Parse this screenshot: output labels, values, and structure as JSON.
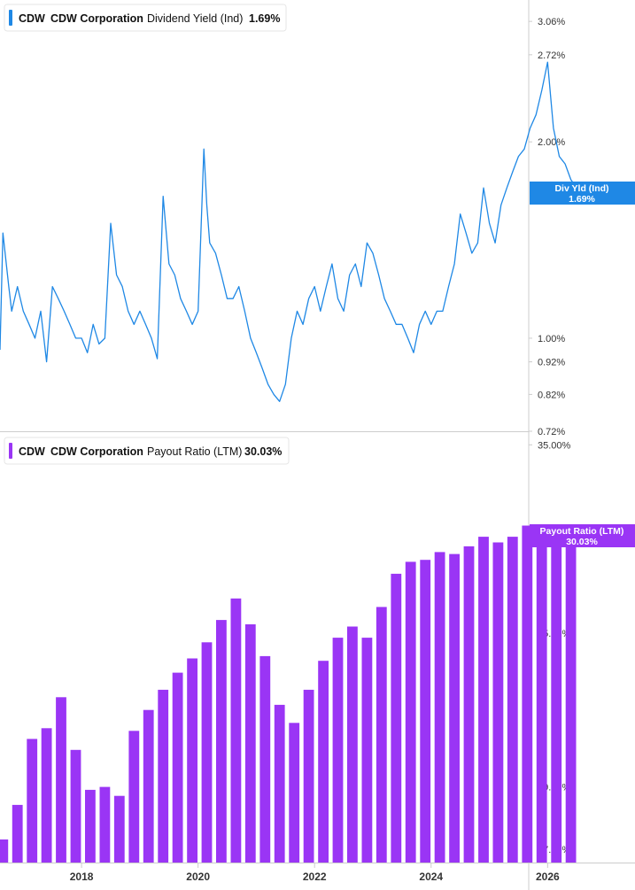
{
  "colors": {
    "yield": "#1f88e5",
    "payout": "#9a35f5",
    "axis_line": "#cccccc",
    "tick_text": "#333333"
  },
  "chart_data": [
    {
      "type": "line",
      "legend": {
        "ticker": "CDW",
        "company": "CDW Corporation",
        "metric": "Dividend Yield (Ind)",
        "value": "1.69%"
      },
      "badge": {
        "line1": "Div Yld (Ind)",
        "line2": "1.69%"
      },
      "y_scale": "log",
      "ylim": [
        0.72,
        3.3
      ],
      "y_ticks": [
        {
          "value": 3.06,
          "label": "3.06%"
        },
        {
          "value": 2.72,
          "label": "2.72%"
        },
        {
          "value": 2.0,
          "label": "2.00%"
        },
        {
          "value": 1.0,
          "label": "1.00%"
        },
        {
          "value": 0.92,
          "label": "0.92%"
        },
        {
          "value": 0.82,
          "label": "0.82%"
        },
        {
          "value": 0.72,
          "label": "0.72%"
        }
      ],
      "xlim": [
        2016.6,
        2027.5
      ],
      "series": [
        {
          "x": [
            2016.6,
            2016.65,
            2016.75,
            2016.8,
            2016.9,
            2017.0,
            2017.1,
            2017.2,
            2017.3,
            2017.4,
            2017.5,
            2017.6,
            2017.7,
            2017.8,
            2017.9,
            2018.0,
            2018.1,
            2018.2,
            2018.3,
            2018.4,
            2018.5,
            2018.6,
            2018.7,
            2018.8,
            2018.9,
            2019.0,
            2019.1,
            2019.2,
            2019.3,
            2019.4,
            2019.5,
            2019.6,
            2019.7,
            2019.8,
            2019.9,
            2020.0,
            2020.1,
            2020.15,
            2020.2,
            2020.3,
            2020.4,
            2020.5,
            2020.6,
            2020.7,
            2020.8,
            2020.9,
            2021.0,
            2021.1,
            2021.2,
            2021.3,
            2021.4,
            2021.5,
            2021.6,
            2021.7,
            2021.8,
            2021.9,
            2022.0,
            2022.1,
            2022.2,
            2022.3,
            2022.4,
            2022.5,
            2022.6,
            2022.7,
            2022.8,
            2022.9,
            2023.0,
            2023.1,
            2023.2,
            2023.3,
            2023.4,
            2023.5,
            2023.6,
            2023.7,
            2023.8,
            2023.9,
            2024.0,
            2024.1,
            2024.2,
            2024.3,
            2024.4,
            2024.5,
            2024.6,
            2024.7,
            2024.8,
            2024.9,
            2025.0,
            2025.1,
            2025.2,
            2025.3,
            2025.4,
            2025.5,
            2025.6,
            2025.7,
            2025.8,
            2025.9,
            2026.0,
            2026.1,
            2026.2,
            2026.3,
            2026.4,
            2026.5,
            2026.6,
            2026.65
          ],
          "values": [
            0.96,
            1.45,
            1.2,
            1.1,
            1.2,
            1.1,
            1.05,
            1.0,
            1.1,
            0.92,
            1.2,
            1.15,
            1.1,
            1.05,
            1.0,
            1.0,
            0.95,
            1.05,
            0.98,
            1.0,
            1.5,
            1.25,
            1.2,
            1.1,
            1.05,
            1.1,
            1.05,
            1.0,
            0.93,
            1.65,
            1.3,
            1.25,
            1.15,
            1.1,
            1.05,
            1.1,
            1.95,
            1.6,
            1.4,
            1.35,
            1.25,
            1.15,
            1.15,
            1.2,
            1.1,
            1.0,
            0.95,
            0.9,
            0.85,
            0.82,
            0.8,
            0.85,
            1.0,
            1.1,
            1.05,
            1.15,
            1.2,
            1.1,
            1.2,
            1.3,
            1.15,
            1.1,
            1.25,
            1.3,
            1.2,
            1.4,
            1.35,
            1.25,
            1.15,
            1.1,
            1.05,
            1.05,
            1.0,
            0.95,
            1.05,
            1.1,
            1.05,
            1.1,
            1.1,
            1.2,
            1.3,
            1.55,
            1.45,
            1.35,
            1.4,
            1.7,
            1.5,
            1.4,
            1.6,
            1.7,
            1.8,
            1.9,
            1.95,
            2.1,
            2.2,
            2.4,
            2.65,
            2.1,
            1.9,
            1.85,
            1.75,
            1.7,
            1.65,
            1.69
          ]
        }
      ]
    },
    {
      "type": "bar",
      "legend": {
        "ticker": "CDW",
        "company": "CDW Corporation",
        "metric": "Payout Ratio (LTM)",
        "value": "30.03%"
      },
      "badge": {
        "line1": "Payout Ratio (LTM)",
        "line2": "30.03%"
      },
      "y_scale": "log",
      "ylim": [
        16.6,
        35.8
      ],
      "y_ticks": [
        {
          "value": 35.0,
          "label": "35.00%"
        },
        {
          "value": 25.0,
          "label": "25.00%"
        },
        {
          "value": 19.0,
          "label": "19.00%"
        },
        {
          "value": 17.0,
          "label": "17.00%"
        }
      ],
      "x_ticks": [
        {
          "value": 2018.0,
          "label": "2018"
        },
        {
          "value": 2020.0,
          "label": "2020"
        },
        {
          "value": 2022.0,
          "label": "2022"
        },
        {
          "value": 2024.0,
          "label": "2024"
        },
        {
          "value": 2026.0,
          "label": "2026"
        }
      ],
      "xlim": [
        2016.6,
        2027.5
      ],
      "series": [
        {
          "x": [
            2016.65,
            2016.9,
            2017.15,
            2017.4,
            2017.65,
            2017.9,
            2018.15,
            2018.4,
            2018.65,
            2018.9,
            2019.15,
            2019.4,
            2019.65,
            2019.9,
            2020.15,
            2020.4,
            2020.65,
            2020.9,
            2021.15,
            2021.4,
            2021.65,
            2021.9,
            2022.15,
            2022.4,
            2022.65,
            2022.9,
            2023.15,
            2023.4,
            2023.65,
            2023.9,
            2024.15,
            2024.4,
            2024.65,
            2024.9,
            2025.15,
            2025.4,
            2025.65,
            2025.9,
            2026.15,
            2026.4
          ],
          "values": [
            17.3,
            18.4,
            20.7,
            21.1,
            22.3,
            20.3,
            18.9,
            19.0,
            18.7,
            21.0,
            21.8,
            22.6,
            23.3,
            23.9,
            24.6,
            25.6,
            26.6,
            25.4,
            24.0,
            22.0,
            21.3,
            22.6,
            23.8,
            24.8,
            25.3,
            24.8,
            26.2,
            27.8,
            28.4,
            28.5,
            28.9,
            28.8,
            29.2,
            29.7,
            29.4,
            29.7,
            30.3,
            29.7,
            29.4,
            29.2
          ]
        }
      ]
    }
  ]
}
